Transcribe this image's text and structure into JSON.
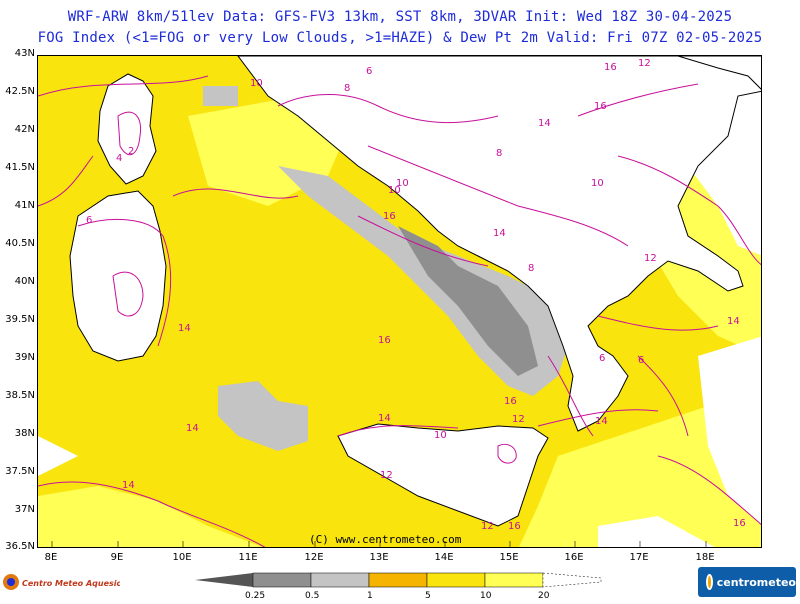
{
  "header": {
    "line1": "WRF-ARW 8km/51lev  Data: GFS-FV3 13km, SST 8km, 3DVAR  Init: Wed 18Z 30-04-2025",
    "line2": "FOG Index (<1=FOG or very Low Clouds, >1=HAZE) & Dew Pt 2m  Valid: Fri 07Z 02-05-2025"
  },
  "axes": {
    "lat_labels": [
      "43N",
      "42.5N",
      "42N",
      "41.5N",
      "41N",
      "40.5N",
      "40N",
      "39.5N",
      "39N",
      "38.5N",
      "38N",
      "37.5N",
      "37N",
      "36.5N"
    ],
    "lon_labels": [
      "8E",
      "9E",
      "10E",
      "11E",
      "12E",
      "13E",
      "14E",
      "15E",
      "16E",
      "17E",
      "18E"
    ]
  },
  "map": {
    "credit": "(C) www.centrometeo.com",
    "contour_labels": [
      "10",
      "6",
      "8",
      "14",
      "16",
      "12",
      "4",
      "2",
      "6",
      "16",
      "14",
      "16",
      "10",
      "8",
      "10",
      "12",
      "14",
      "16",
      "14",
      "12",
      "16",
      "14",
      "16",
      "12",
      "10",
      "14",
      "8",
      "6",
      "16",
      "14",
      "6",
      "12",
      "10",
      "14"
    ]
  },
  "legend": {
    "ticks": [
      "0.25",
      "0.5",
      "1",
      "5",
      "10",
      "20"
    ],
    "colors": {
      "dark_grey": "#555555",
      "mid_grey": "#8f8f8f",
      "light_grey": "#c4c4c4",
      "orange": "#f5b400",
      "yellow": "#f9e40d",
      "pale_yellow": "#ffff55"
    }
  },
  "logos": {
    "left": "Centro Meteo Aquesio",
    "right": "centrometeo"
  }
}
